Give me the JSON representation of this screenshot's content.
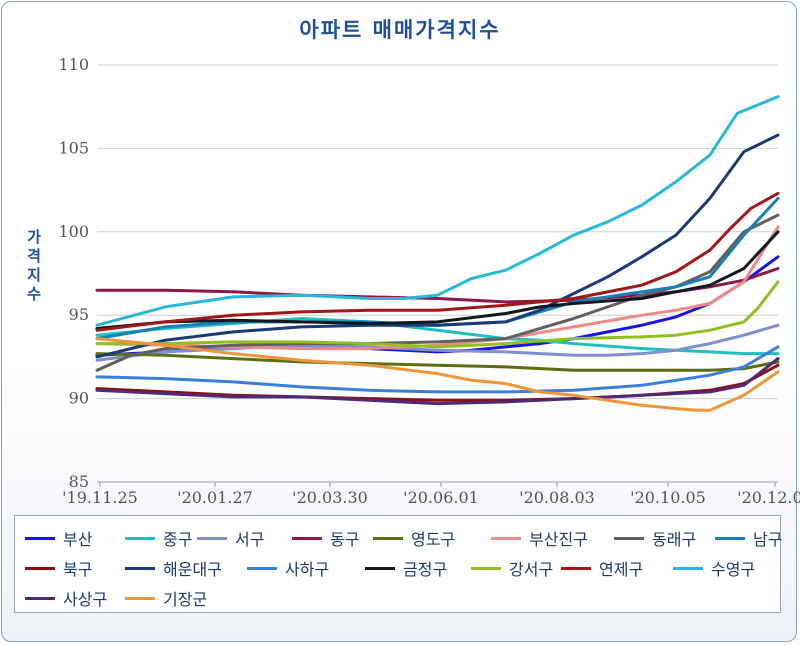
{
  "chart_data": {
    "type": "line",
    "title": "아파트 매매가격지수",
    "ylabel": "가격지수",
    "xlabel": "",
    "ylim": [
      85,
      110
    ],
    "yticks": [
      85,
      90,
      95,
      100,
      105,
      110
    ],
    "xticks": [
      "'19.11.25",
      "'20.01.27",
      "'20.03.30",
      "'20.06.01",
      "'20.08.03",
      "'20.10.05",
      "'20.12.07"
    ],
    "grid": true,
    "legend_position": "bottom",
    "series": [
      {
        "name": "부산",
        "color": "#1515e6",
        "x": [
          0,
          0.1,
          0.2,
          0.3,
          0.4,
          0.5,
          0.55,
          0.6,
          0.65,
          0.7,
          0.75,
          0.8,
          0.85,
          0.9,
          0.95,
          1
        ],
        "values": [
          92.6,
          92.8,
          93.1,
          93.2,
          93,
          92.8,
          92.9,
          93.1,
          93.3,
          93.6,
          94,
          94.4,
          94.9,
          95.7,
          97,
          98.5
        ]
      },
      {
        "name": "중구",
        "color": "#20c0c0",
        "x": [
          0,
          0.1,
          0.2,
          0.3,
          0.4,
          0.5,
          0.6,
          0.65,
          0.7,
          0.8,
          0.9,
          0.95,
          1
        ],
        "values": [
          93.8,
          94.2,
          94.5,
          94.8,
          94.6,
          94.1,
          93.6,
          93.5,
          93.3,
          93,
          92.8,
          92.7,
          92.7
        ]
      },
      {
        "name": "서구",
        "color": "#7f8fd0",
        "x": [
          0,
          0.1,
          0.2,
          0.3,
          0.4,
          0.5,
          0.6,
          0.7,
          0.75,
          0.8,
          0.85,
          0.9,
          0.95,
          1
        ],
        "values": [
          92.3,
          92.8,
          93,
          93.2,
          93.1,
          92.9,
          92.8,
          92.6,
          92.6,
          92.7,
          92.9,
          93.3,
          93.8,
          94.4
        ]
      },
      {
        "name": "동구",
        "color": "#8b1a4a",
        "x": [
          0,
          0.1,
          0.2,
          0.3,
          0.4,
          0.5,
          0.6,
          0.7,
          0.8,
          0.85,
          0.9,
          0.95,
          1
        ],
        "values": [
          96.5,
          96.5,
          96.4,
          96.2,
          96.1,
          96,
          95.8,
          95.9,
          96.2,
          96.4,
          96.7,
          97.1,
          97.8
        ]
      },
      {
        "name": "영도구",
        "color": "#5a7010",
        "x": [
          0,
          0.1,
          0.2,
          0.3,
          0.4,
          0.5,
          0.6,
          0.7,
          0.8,
          0.9,
          0.95,
          1
        ],
        "values": [
          92.7,
          92.6,
          92.4,
          92.2,
          92.1,
          92,
          91.9,
          91.7,
          91.7,
          91.7,
          91.8,
          92.2
        ]
      },
      {
        "name": "부산진구",
        "color": "#f08a8a",
        "x": [
          0,
          0.1,
          0.2,
          0.3,
          0.4,
          0.5,
          0.6,
          0.7,
          0.8,
          0.85,
          0.9,
          0.95,
          1
        ],
        "values": [
          93.3,
          93.2,
          93.1,
          93,
          93,
          93.2,
          93.6,
          94.3,
          95,
          95.3,
          95.7,
          97,
          100.3
        ]
      },
      {
        "name": "동래구",
        "color": "#606060",
        "x": [
          0,
          0.05,
          0.1,
          0.2,
          0.3,
          0.4,
          0.5,
          0.6,
          0.7,
          0.8,
          0.85,
          0.9,
          0.95,
          1
        ],
        "values": [
          91.7,
          92.6,
          93,
          93.2,
          93.3,
          93.3,
          93.4,
          93.6,
          94.8,
          96.2,
          96.7,
          97.6,
          100,
          101
        ]
      },
      {
        "name": "남구",
        "color": "#1a7fb8",
        "x": [
          0,
          0.1,
          0.2,
          0.3,
          0.4,
          0.5,
          0.6,
          0.7,
          0.8,
          0.85,
          0.9,
          0.95,
          1
        ],
        "values": [
          93.6,
          94.3,
          94.6,
          94.6,
          94.6,
          94.4,
          94.6,
          95.8,
          96.4,
          96.7,
          97.3,
          99.8,
          102
        ]
      },
      {
        "name": "북구",
        "color": "#8b1010",
        "x": [
          0,
          0.1,
          0.2,
          0.3,
          0.4,
          0.5,
          0.6,
          0.7,
          0.8,
          0.9,
          0.95,
          1
        ],
        "values": [
          90.6,
          90.4,
          90.2,
          90.1,
          90,
          89.9,
          89.9,
          90,
          90.2,
          90.5,
          90.9,
          92
        ]
      },
      {
        "name": "해운대구",
        "color": "#1a3a78",
        "x": [
          0,
          0.1,
          0.2,
          0.3,
          0.4,
          0.5,
          0.6,
          0.65,
          0.7,
          0.75,
          0.8,
          0.85,
          0.9,
          0.95,
          1
        ],
        "values": [
          92.5,
          93.5,
          94,
          94.3,
          94.4,
          94.4,
          94.6,
          95.3,
          96.3,
          97.3,
          98.5,
          99.8,
          102,
          104.8,
          105.8
        ]
      },
      {
        "name": "사하구",
        "color": "#3a7fdc",
        "x": [
          0,
          0.1,
          0.2,
          0.3,
          0.4,
          0.5,
          0.6,
          0.7,
          0.8,
          0.85,
          0.9,
          0.95,
          1
        ],
        "values": [
          91.3,
          91.2,
          91,
          90.7,
          90.5,
          90.4,
          90.4,
          90.5,
          90.8,
          91.1,
          91.4,
          91.9,
          93.1
        ]
      },
      {
        "name": "금정구",
        "color": "#101820",
        "x": [
          0,
          0.1,
          0.2,
          0.3,
          0.4,
          0.5,
          0.6,
          0.65,
          0.7,
          0.8,
          0.85,
          0.9,
          0.95,
          1
        ],
        "values": [
          94.2,
          94.6,
          94.7,
          94.6,
          94.5,
          94.6,
          95.1,
          95.5,
          95.7,
          96,
          96.4,
          96.8,
          97.8,
          100
        ]
      },
      {
        "name": "강서구",
        "color": "#90c020",
        "x": [
          0,
          0.1,
          0.2,
          0.3,
          0.4,
          0.5,
          0.6,
          0.7,
          0.8,
          0.85,
          0.9,
          0.95,
          0.97,
          1
        ],
        "values": [
          93.3,
          93.3,
          93.4,
          93.4,
          93.3,
          93.1,
          93.3,
          93.6,
          93.7,
          93.8,
          94.1,
          94.6,
          95.4,
          97
        ]
      },
      {
        "name": "연제구",
        "color": "#a01818",
        "x": [
          0,
          0.1,
          0.2,
          0.3,
          0.4,
          0.5,
          0.6,
          0.7,
          0.8,
          0.85,
          0.9,
          0.93,
          0.96,
          1
        ],
        "values": [
          94.1,
          94.6,
          95,
          95.2,
          95.3,
          95.3,
          95.6,
          96,
          96.8,
          97.6,
          98.9,
          100.2,
          101.4,
          102.3
        ]
      },
      {
        "name": "수영구",
        "color": "#28b8d8",
        "x": [
          0,
          0.1,
          0.2,
          0.3,
          0.4,
          0.45,
          0.5,
          0.55,
          0.6,
          0.65,
          0.7,
          0.75,
          0.8,
          0.85,
          0.9,
          0.94,
          0.97,
          1
        ],
        "values": [
          94.4,
          95.5,
          96.1,
          96.2,
          96,
          96,
          96.2,
          97.2,
          97.7,
          98.7,
          99.8,
          100.6,
          101.6,
          103,
          104.6,
          107.1,
          107.6,
          108.1
        ]
      },
      {
        "name": "사상구",
        "color": "#502878",
        "x": [
          0,
          0.1,
          0.2,
          0.3,
          0.4,
          0.5,
          0.6,
          0.7,
          0.8,
          0.9,
          0.95,
          1
        ],
        "values": [
          90.5,
          90.3,
          90.1,
          90.1,
          89.9,
          89.7,
          89.8,
          90,
          90.2,
          90.4,
          90.8,
          92.4
        ]
      },
      {
        "name": "기장군",
        "color": "#f0963a",
        "x": [
          0,
          0.1,
          0.2,
          0.3,
          0.4,
          0.5,
          0.55,
          0.6,
          0.65,
          0.7,
          0.75,
          0.8,
          0.85,
          0.88,
          0.9,
          0.95,
          1
        ],
        "values": [
          93.6,
          93.2,
          92.7,
          92.3,
          92,
          91.5,
          91.1,
          90.9,
          90.4,
          90.2,
          89.9,
          89.6,
          89.4,
          89.3,
          89.3,
          90.2,
          91.6
        ]
      }
    ]
  }
}
